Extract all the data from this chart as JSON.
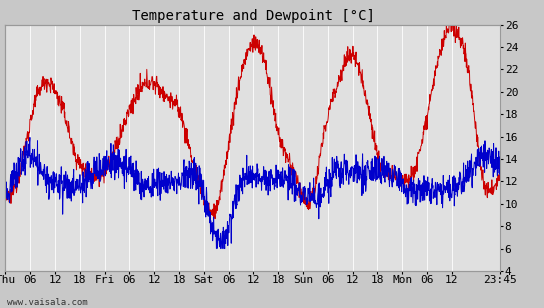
{
  "title": "Temperature and Dewpoint [°C]",
  "ylabel_right_ticks": [
    4,
    6,
    8,
    10,
    12,
    14,
    16,
    18,
    20,
    22,
    24,
    26
  ],
  "ylim": [
    4,
    26
  ],
  "xtick_labels": [
    "Thu",
    "06",
    "12",
    "18",
    "Fri",
    "06",
    "12",
    "18",
    "Sat",
    "06",
    "12",
    "18",
    "Sun",
    "06",
    "12",
    "18",
    "Mon",
    "06",
    "12",
    "23:45"
  ],
  "xtick_positions": [
    0,
    6,
    12,
    18,
    24,
    30,
    36,
    42,
    48,
    54,
    60,
    66,
    72,
    78,
    84,
    90,
    96,
    102,
    108,
    119.75
  ],
  "total_hours": 119.75,
  "bg_color": "#c8c8c8",
  "plot_bg_color": "#e0e0e0",
  "temp_color": "#cc0000",
  "dewp_color": "#0000cc",
  "grid_color": "#ffffff",
  "watermark": "www.vaisala.com",
  "title_fontsize": 10,
  "tick_fontsize": 8,
  "line_width": 0.7,
  "figwidth": 5.44,
  "figheight": 3.08,
  "dpi": 100
}
